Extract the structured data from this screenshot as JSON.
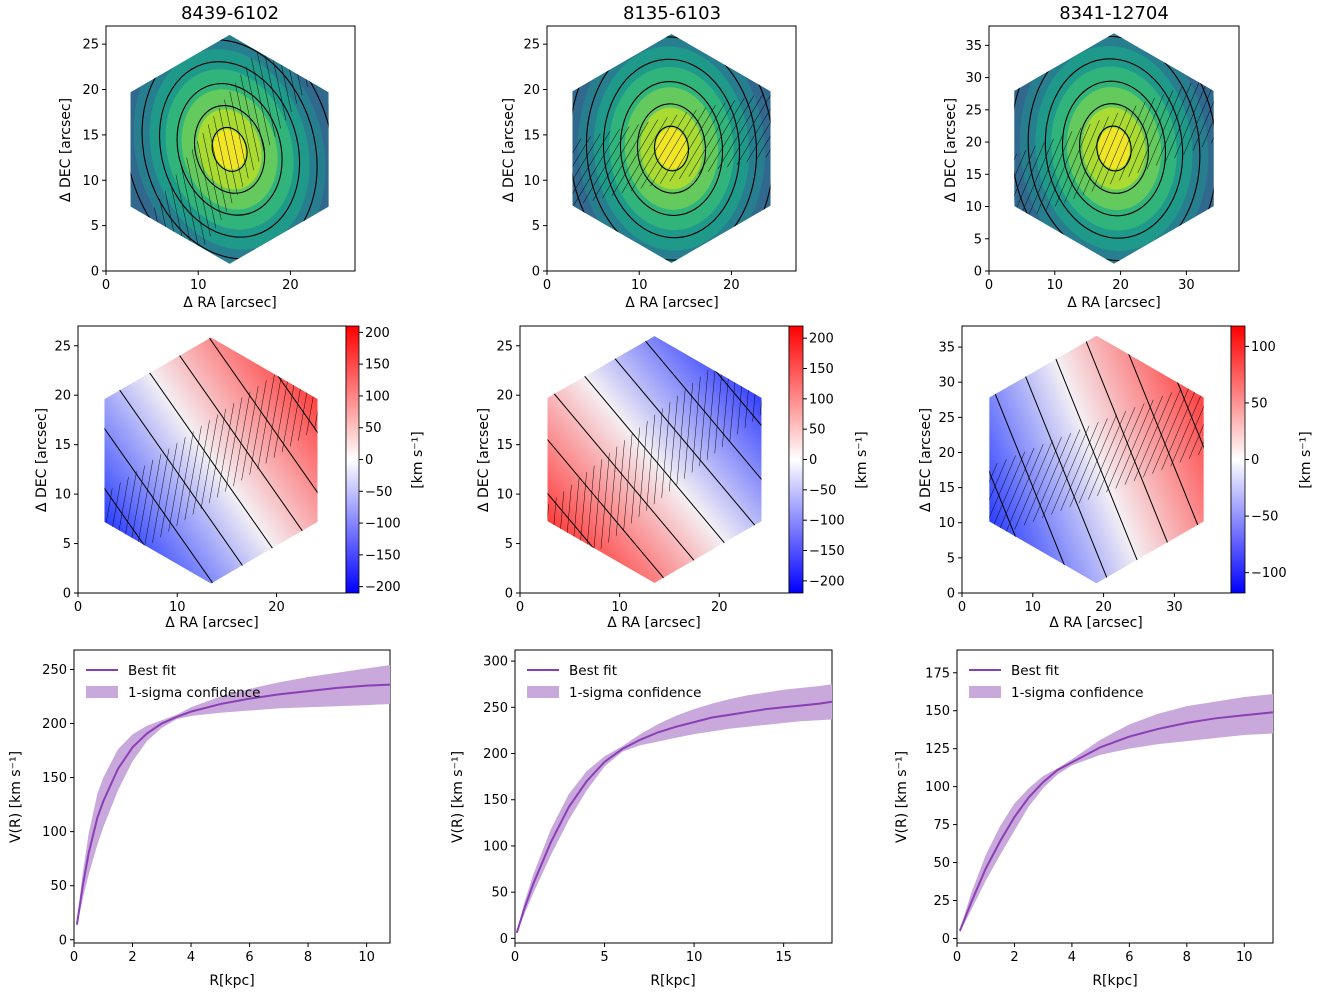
{
  "panels": [
    {
      "title": "8439-6102",
      "flux": {
        "xlabel": "Δ RA  [arcsec]",
        "ylabel": "Δ DEC [arcsec]",
        "xlim": [
          0,
          27
        ],
        "ylim": [
          0,
          27
        ],
        "xticks": [
          0,
          10,
          20
        ],
        "yticks": [
          0,
          5,
          10,
          15,
          20,
          25
        ],
        "center": [
          13.4,
          13.4
        ],
        "hexradius": 12.4,
        "slit_angle_deg": -57
      },
      "velocity": {
        "xlabel": "Δ RA [arcsec]",
        "ylabel": "Δ DEC [arcsec]",
        "xlim": [
          0,
          27
        ],
        "ylim": [
          0,
          27
        ],
        "xticks": [
          0,
          10,
          20
        ],
        "yticks": [
          0,
          5,
          10,
          15,
          20,
          25
        ],
        "center": [
          13.4,
          13.4
        ],
        "hexradius": 12.4,
        "colorbar_label": "[km s⁻¹]",
        "vrange": [
          -210,
          210
        ],
        "cbar_ticks": [
          200,
          150,
          100,
          50,
          0,
          -50,
          -100,
          -150,
          -200
        ],
        "gradient_angle_deg": -35
      },
      "rotation": {
        "xlabel": "R[kpc]",
        "ylabel": "V(R) [km s⁻¹]",
        "xlim": [
          0,
          10.8
        ],
        "ylim": [
          -3,
          268
        ],
        "xticks": [
          0,
          2,
          4,
          6,
          8,
          10
        ],
        "yticks": [
          0,
          50,
          100,
          150,
          200,
          250
        ]
      }
    },
    {
      "title": "8135-6103",
      "flux": {
        "xlabel": "Δ RA  [arcsec]",
        "ylabel": "Δ DEC [arcsec]",
        "xlim": [
          0,
          27
        ],
        "ylim": [
          0,
          27
        ],
        "xticks": [
          0,
          10,
          20
        ],
        "yticks": [
          0,
          5,
          10,
          15,
          20,
          25
        ],
        "center": [
          13.5,
          13.5
        ],
        "hexradius": 12.4,
        "slit_angle_deg": -14
      },
      "velocity": {
        "xlabel": "Δ RA [arcsec]",
        "ylabel": "Δ DEC [arcsec]",
        "xlim": [
          0,
          27
        ],
        "ylim": [
          0,
          27
        ],
        "xticks": [
          0,
          10,
          20
        ],
        "yticks": [
          0,
          5,
          10,
          15,
          20,
          25
        ],
        "center": [
          13.5,
          13.5
        ],
        "hexradius": 12.4,
        "colorbar_label": "[km s⁻¹]",
        "vrange": [
          -220,
          220
        ],
        "cbar_ticks": [
          200,
          150,
          100,
          50,
          0,
          -50,
          -100,
          -150,
          -200
        ],
        "gradient_angle_deg": -40
      },
      "rotation": {
        "xlabel": "R[kpc]",
        "ylabel": "V(R) [km s⁻¹]",
        "xlim": [
          0,
          17.7
        ],
        "ylim": [
          -5,
          312
        ],
        "xticks": [
          0,
          5,
          10,
          15
        ],
        "yticks": [
          0,
          50,
          100,
          150,
          200,
          250,
          300
        ]
      }
    },
    {
      "title": "8341-12704",
      "flux": {
        "xlabel": "Δ RA  [arcsec]",
        "ylabel": "Δ DEC [arcsec]",
        "xlim": [
          0,
          38
        ],
        "ylim": [
          0,
          38
        ],
        "xticks": [
          0,
          10,
          20,
          30
        ],
        "yticks": [
          0,
          5,
          10,
          15,
          20,
          25,
          30,
          35
        ],
        "center": [
          19,
          19
        ],
        "hexradius": 17.5,
        "slit_angle_deg": -22
      },
      "velocity": {
        "xlabel": "Δ RA [arcsec]",
        "ylabel": "Δ DEC [arcsec]",
        "xlim": [
          0,
          38
        ],
        "ylim": [
          0,
          38
        ],
        "xticks": [
          0,
          10,
          20,
          30
        ],
        "yticks": [
          0,
          5,
          10,
          15,
          20,
          25,
          30,
          35
        ],
        "center": [
          19,
          19
        ],
        "hexradius": 17.5,
        "colorbar_label": "[km s⁻¹]",
        "vrange": [
          -118,
          118
        ],
        "cbar_ticks": [
          100,
          50,
          0,
          -50,
          -100
        ],
        "gradient_angle_deg": -22
      },
      "rotation": {
        "xlabel": "R[kpc]",
        "ylabel": "V(R) [km s⁻¹]",
        "xlim": [
          0,
          11
        ],
        "ylim": [
          -3,
          190
        ],
        "xticks": [
          0,
          2,
          4,
          6,
          8,
          10
        ],
        "yticks": [
          0,
          25,
          50,
          75,
          100,
          125,
          150,
          175
        ]
      }
    }
  ],
  "legend": {
    "best_fit": "Best fit",
    "confidence": "1-sigma confidence"
  },
  "colors": {
    "fit_line": "#8b3fb5",
    "band": "#c9a8dc",
    "cmap_red": "#ff0000",
    "cmap_blue": "#0000ff"
  },
  "chart_data": [
    {
      "type": "line",
      "title": "8439-6102",
      "xlabel": "R[kpc]",
      "ylabel": "V(R) [km s⁻¹]",
      "xlim": [
        0,
        10.8
      ],
      "ylim": [
        -3,
        268
      ],
      "series": [
        {
          "name": "Best fit",
          "x": [
            0.1,
            0.3,
            0.5,
            0.8,
            1.0,
            1.5,
            2.0,
            2.5,
            3.0,
            3.5,
            4.0,
            5.0,
            6.0,
            7.0,
            8.0,
            9.0,
            10.0,
            10.8
          ],
          "y": [
            14,
            50,
            80,
            113,
            128,
            158,
            178,
            191,
            200,
            206,
            211,
            218,
            223,
            227,
            230,
            233,
            235,
            236
          ]
        },
        {
          "name": "1-sigma confidence",
          "x": [
            0.1,
            0.3,
            0.5,
            0.8,
            1.0,
            1.5,
            2.0,
            2.5,
            3.0,
            3.5,
            4.0,
            5.0,
            6.0,
            7.0,
            8.0,
            9.0,
            10.0,
            10.8
          ],
          "lower": [
            12,
            38,
            60,
            88,
            104,
            138,
            165,
            184,
            196,
            204,
            207,
            210,
            212,
            214,
            215,
            216,
            217,
            218
          ],
          "upper": [
            17,
            62,
            98,
            135,
            150,
            176,
            190,
            198,
            203,
            208,
            215,
            225,
            232,
            238,
            243,
            247,
            251,
            254
          ]
        }
      ]
    },
    {
      "type": "line",
      "title": "8135-6103",
      "xlabel": "R[kpc]",
      "ylabel": "V(R) [km s⁻¹]",
      "xlim": [
        0,
        17.7
      ],
      "ylim": [
        -5,
        312
      ],
      "series": [
        {
          "name": "Best fit",
          "x": [
            0.1,
            0.5,
            1.0,
            2.0,
            3.0,
            4.0,
            5.0,
            6.0,
            7.0,
            8.0,
            9.0,
            10.0,
            11.0,
            12.0,
            13.0,
            14.0,
            15.0,
            16.0,
            17.0,
            17.7
          ],
          "y": [
            6,
            31,
            58,
            104,
            142,
            170,
            191,
            205,
            215,
            223,
            229,
            234,
            239,
            242,
            245,
            248,
            250,
            252,
            254,
            256
          ]
        },
        {
          "name": "1-sigma confidence",
          "x": [
            0.1,
            0.5,
            1.0,
            2.0,
            3.0,
            4.0,
            5.0,
            6.0,
            7.0,
            8.0,
            9.0,
            10.0,
            11.0,
            12.0,
            13.0,
            14.0,
            15.0,
            16.0,
            17.0,
            17.7
          ],
          "lower": [
            5,
            25,
            48,
            90,
            128,
            160,
            186,
            202,
            209,
            213,
            217,
            221,
            224,
            227,
            229,
            231,
            233,
            235,
            236,
            237
          ],
          "upper": [
            7,
            37,
            68,
            118,
            156,
            181,
            197,
            208,
            221,
            232,
            241,
            248,
            254,
            259,
            263,
            266,
            269,
            271,
            273,
            275
          ]
        }
      ]
    },
    {
      "type": "line",
      "title": "8341-12704",
      "xlabel": "R[kpc]",
      "ylabel": "V(R) [km s⁻¹]",
      "xlim": [
        0,
        11
      ],
      "ylim": [
        -3,
        190
      ],
      "series": [
        {
          "name": "Best fit",
          "x": [
            0.1,
            0.5,
            1.0,
            1.5,
            2.0,
            2.5,
            3.0,
            3.5,
            4.0,
            5.0,
            6.0,
            7.0,
            8.0,
            9.0,
            10.0,
            11.0
          ],
          "y": [
            5,
            24,
            46,
            64,
            80,
            93,
            103,
            111,
            116,
            126,
            133,
            138,
            142,
            145,
            147,
            149
          ]
        },
        {
          "name": "1-sigma confidence",
          "x": [
            0.1,
            0.5,
            1.0,
            1.5,
            2.0,
            2.5,
            3.0,
            3.5,
            4.0,
            5.0,
            6.0,
            7.0,
            8.0,
            9.0,
            10.0,
            11.0
          ],
          "lower": [
            4,
            19,
            38,
            55,
            71,
            87,
            99,
            108,
            114,
            121,
            125,
            128,
            130,
            132,
            134,
            135
          ],
          "upper": [
            6,
            30,
            55,
            74,
            89,
            99,
            107,
            112,
            118,
            131,
            141,
            148,
            153,
            156,
            159,
            161
          ]
        }
      ]
    }
  ]
}
